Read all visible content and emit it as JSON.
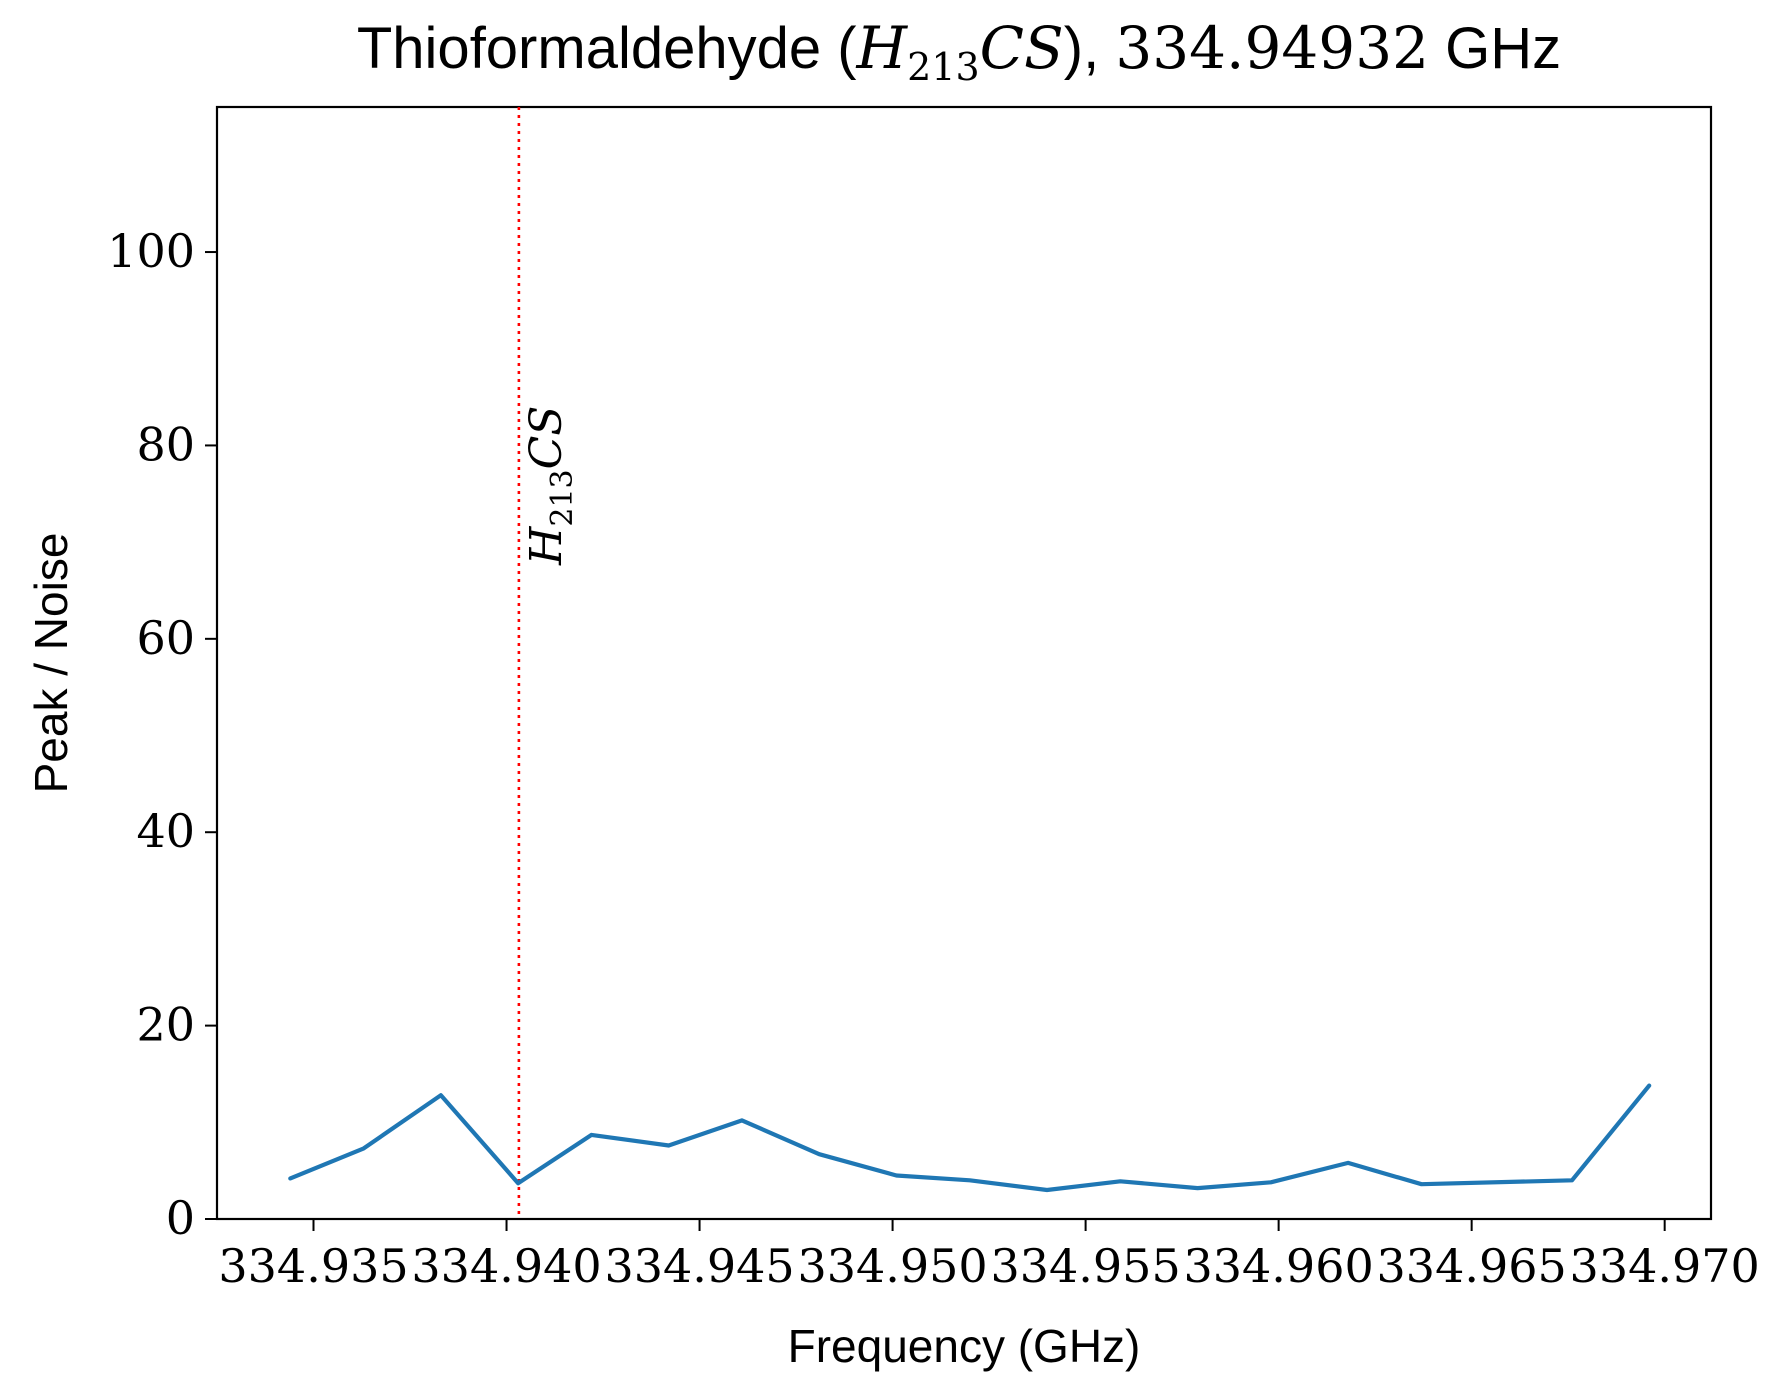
{
  "chart_data": {
    "type": "line",
    "title": {
      "prefix": "Thioformaldehyde (",
      "formula_base": "H",
      "formula_sub": "213",
      "formula_rest": "CS",
      "middle": "), ",
      "freq": "334.94932",
      "suffix": " GHz"
    },
    "xlabel": "Frequency (GHz)",
    "ylabel": "Peak / Noise",
    "xlim": [
      334.9325,
      334.9712
    ],
    "ylim": [
      0,
      115
    ],
    "xticks": [
      334.935,
      334.94,
      334.945,
      334.95,
      334.955,
      334.96,
      334.965,
      334.97
    ],
    "xtick_labels": [
      "334.935",
      "334.940",
      "334.945",
      "334.950",
      "334.955",
      "334.960",
      "334.965",
      "334.970"
    ],
    "yticks": [
      0,
      20,
      40,
      60,
      80,
      100
    ],
    "ytick_labels": [
      "0",
      "20",
      "40",
      "60",
      "80",
      "100"
    ],
    "grid": false,
    "series": [
      {
        "color": "#1f77b4",
        "x": [
          334.9344,
          334.9363,
          334.9383,
          334.9403,
          334.9422,
          334.9442,
          334.9461,
          334.9481,
          334.9501,
          334.952,
          334.954,
          334.9559,
          334.9579,
          334.9598,
          334.9618,
          334.9637,
          334.9676,
          334.9696
        ],
        "y": [
          4.2,
          7.3,
          12.8,
          3.7,
          8.7,
          7.6,
          10.2,
          6.7,
          4.5,
          4.0,
          3.0,
          3.9,
          3.2,
          3.8,
          5.8,
          3.6,
          4.0,
          13.8
        ]
      }
    ],
    "vlines": [
      {
        "x": 334.94032,
        "color": "#ff0000",
        "style": "dotted",
        "label_base": "H",
        "label_sub": "213",
        "label_rest": "CS"
      }
    ]
  }
}
